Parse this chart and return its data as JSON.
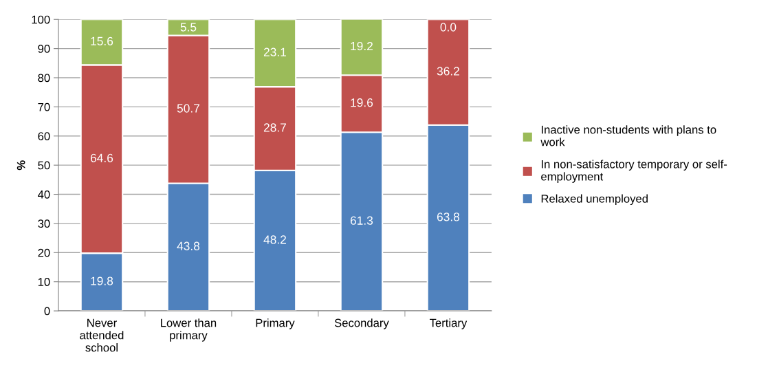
{
  "chart_data": {
    "type": "bar",
    "stacked": true,
    "ylabel": "%",
    "categories": [
      "Never\nattended\nschool",
      "Lower than\nprimary",
      "Primary",
      "Secondary",
      "Tertiary"
    ],
    "series": [
      {
        "name": "Relaxed unemployed",
        "color": "#4f81bd",
        "values": [
          19.8,
          43.8,
          48.2,
          61.3,
          63.8
        ],
        "value_labels": [
          "19.8",
          "43.8",
          "48.2",
          "61.3",
          "63.8"
        ]
      },
      {
        "name": "In non-satisfactory temporary or self-\nemployment",
        "color": "#c0504d",
        "values": [
          64.6,
          50.7,
          28.7,
          19.6,
          36.2
        ],
        "value_labels": [
          "64.6",
          "50.7",
          "28.7",
          "19.6",
          "36.2"
        ]
      },
      {
        "name": "Inactive non-students with plans to\nwork",
        "color": "#9bbb59",
        "values": [
          15.6,
          5.5,
          23.1,
          19.2,
          0.0
        ],
        "value_labels": [
          "15.6",
          "5.5",
          "23.1",
          "19.2",
          "0.0"
        ]
      }
    ],
    "ylim": [
      0,
      100
    ],
    "yticks": [
      0,
      10,
      20,
      30,
      40,
      50,
      60,
      70,
      80,
      90,
      100
    ],
    "grid": "y",
    "legend": "right"
  }
}
